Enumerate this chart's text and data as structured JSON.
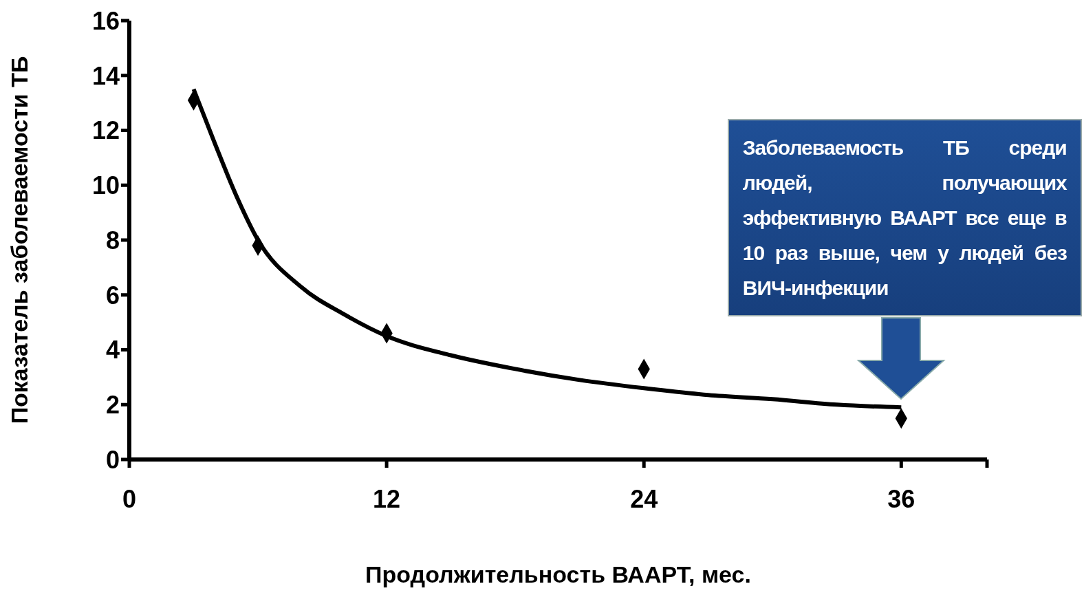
{
  "chart_data": {
    "type": "scatter",
    "xlabel": "Продолжительность ВААРТ, мес.",
    "ylabel": "Показатель заболеваемости ТБ",
    "xlim": [
      0,
      40
    ],
    "xticks": [
      0,
      12,
      24,
      36,
      {
        "value": 40,
        "label": null
      }
    ],
    "ylim": [
      0,
      16
    ],
    "yticks": [
      0,
      2,
      4,
      6,
      8,
      10,
      12,
      14,
      16
    ],
    "grid": false,
    "legend": false,
    "marker": "diamond",
    "series": [
      {
        "color": "#000000",
        "x": [
          3,
          6,
          12,
          24,
          36
        ],
        "values": [
          13.1,
          7.8,
          4.6,
          3.3,
          1.5
        ]
      },
      {
        "type": "line",
        "color": "#000000",
        "marker": "none",
        "line_style": "solid",
        "x": [
          3,
          4,
          5,
          6,
          8,
          10,
          12,
          15,
          18,
          21,
          24,
          27,
          30,
          33,
          36
        ],
        "values": [
          13.5,
          11.5,
          9.6,
          8.0,
          6.3,
          5.3,
          4.5,
          3.8,
          3.3,
          2.9,
          2.6,
          2.35,
          2.2,
          2.0,
          1.9
        ]
      }
    ],
    "annotations": [
      "Заболеваемость ТБ среди людей, получающих эффективную ВААРТ все еще в 10 раз выше, чем у людей без ВИЧ-инфекции"
    ]
  }
}
